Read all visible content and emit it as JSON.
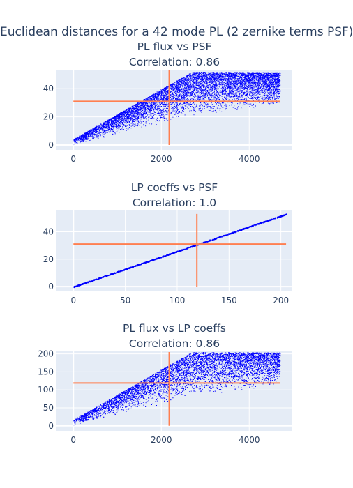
{
  "title": "Euclidean distances for a 42 mode PL (2 zernike terms PSF)",
  "colors": {
    "points": "#0000ff",
    "crosshair": "#ff7f50",
    "plot_bg": "#e5ecf6",
    "grid": "#ffffff",
    "text": "#2a3f5f"
  },
  "chart_data": [
    {
      "type": "scatter",
      "title": "PL flux vs PSF",
      "subtitle": "Correlation: 0.86",
      "xlim": [
        -400,
        4980
      ],
      "ylim": [
        -3.5,
        53.5
      ],
      "xticks": [
        0,
        2000,
        4000
      ],
      "yticks": [
        0,
        20,
        40
      ],
      "xlabel": "",
      "ylabel": "",
      "cloud": {
        "x_max": 4700,
        "y_max": 52,
        "trend": "rising then saturating"
      },
      "crosshair": {
        "x": 2180,
        "y": 31,
        "x_range": [
          0,
          4700
        ],
        "y_range": [
          0,
          53
        ]
      }
    },
    {
      "type": "scatter",
      "title": "LP coeffs vs PSF",
      "subtitle": "Correlation: 1.0",
      "xlim": [
        -17,
        211
      ],
      "ylim": [
        -3.5,
        56
      ],
      "xticks": [
        0,
        50,
        100,
        150,
        200
      ],
      "yticks": [
        0,
        20,
        40
      ],
      "xlabel": "",
      "ylabel": "",
      "line": {
        "x_start": 0,
        "y_start": 0,
        "x_end": 205,
        "y_end": 53
      },
      "crosshair": {
        "x": 119,
        "y": 31,
        "x_range": [
          0,
          205
        ],
        "y_range": [
          0,
          53
        ]
      }
    },
    {
      "type": "scatter",
      "title": "PL flux vs LP coeffs",
      "subtitle": "Correlation: 0.86",
      "xlim": [
        -400,
        4980
      ],
      "ylim": [
        -14,
        207
      ],
      "xticks": [
        0,
        2000,
        4000
      ],
      "yticks": [
        0,
        50,
        100,
        150,
        200
      ],
      "xlabel": "",
      "ylabel": "",
      "cloud": {
        "x_max": 4700,
        "y_max": 205,
        "trend": "rising then saturating"
      },
      "crosshair": {
        "x": 2180,
        "y": 119,
        "x_range": [
          0,
          4700
        ],
        "y_range": [
          0,
          205
        ]
      }
    }
  ]
}
